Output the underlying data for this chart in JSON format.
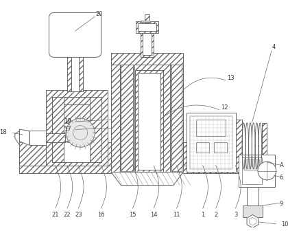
{
  "line_color": "#666666",
  "fig_width": 4.2,
  "fig_height": 3.39,
  "dpi": 100,
  "label_fs": 6.0,
  "lw": 0.7
}
